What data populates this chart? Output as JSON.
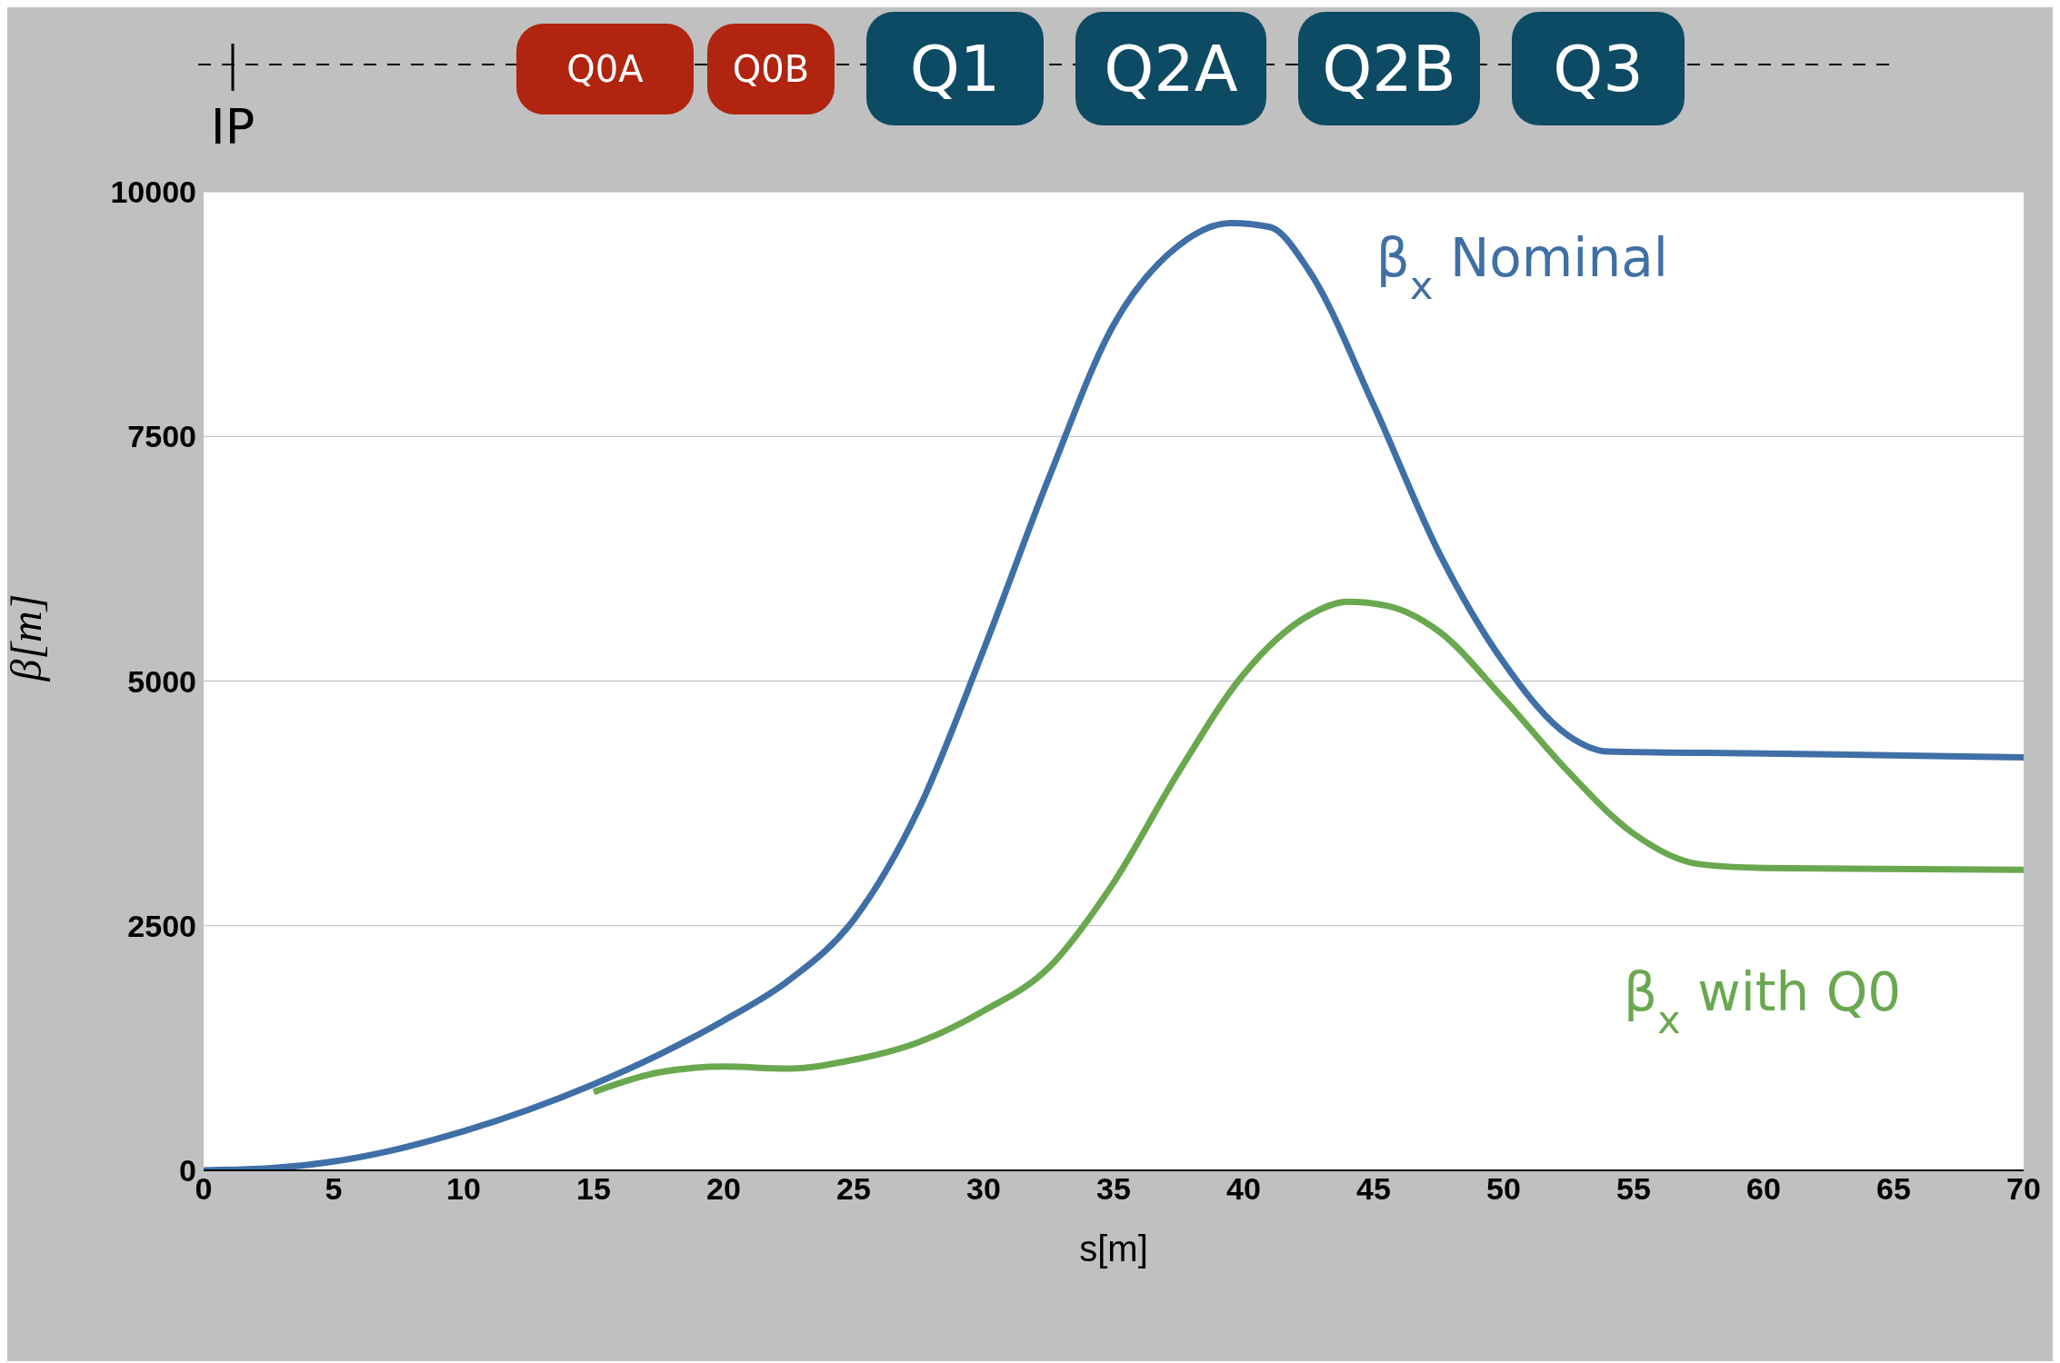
{
  "chart_data": {
    "type": "line",
    "xlabel": "s[m]",
    "ylabel": "β[m]",
    "xlim": [
      0,
      70
    ],
    "xticks": [
      0,
      5,
      10,
      15,
      20,
      25,
      30,
      35,
      40,
      45,
      50,
      55,
      60,
      65,
      70
    ],
    "ylim": [
      0,
      10000
    ],
    "yticks": [
      0,
      2500,
      5000,
      7500,
      10000
    ],
    "grid": "y",
    "marker": "none",
    "line_style": "solid",
    "annotations": [
      "IP",
      "Q0A",
      "Q0B",
      "Q1",
      "Q2A",
      "Q2B",
      "Q3"
    ],
    "series": [
      {
        "name": "β$_{x}$ Nominal",
        "color": "#3f6fa6",
        "x": [
          0,
          2.5,
          5,
          7.5,
          10,
          12.5,
          15,
          17.5,
          20,
          22.5,
          25,
          27.5,
          30,
          32.5,
          35,
          37.5,
          39.5,
          41,
          42.5,
          45,
          47.5,
          50,
          52.5,
          54,
          60,
          70
        ],
        "values": [
          0,
          20,
          90,
          220,
          400,
          620,
          880,
          1180,
          1530,
          1940,
          2560,
          3690,
          5320,
          7070,
          8640,
          9450,
          9680,
          9640,
          9200,
          7820,
          6320,
          5190,
          4440,
          4280,
          4260,
          4220
        ]
      },
      {
        "name": "β$_{x}$ with Q0",
        "color": "#6aa84f",
        "x": [
          15,
          17.5,
          20,
          22.5,
          25,
          27.5,
          30,
          32.5,
          35,
          37.5,
          40,
          42.5,
          44,
          45.5,
          47.5,
          50,
          52.5,
          55,
          57.5,
          60,
          70
        ],
        "values": [
          800,
          1000,
          1060,
          1040,
          1130,
          1310,
          1630,
          2070,
          2940,
          4070,
          5070,
          5670,
          5810,
          5770,
          5510,
          4820,
          4070,
          3440,
          3130,
          3090,
          3070
        ]
      }
    ]
  }
}
